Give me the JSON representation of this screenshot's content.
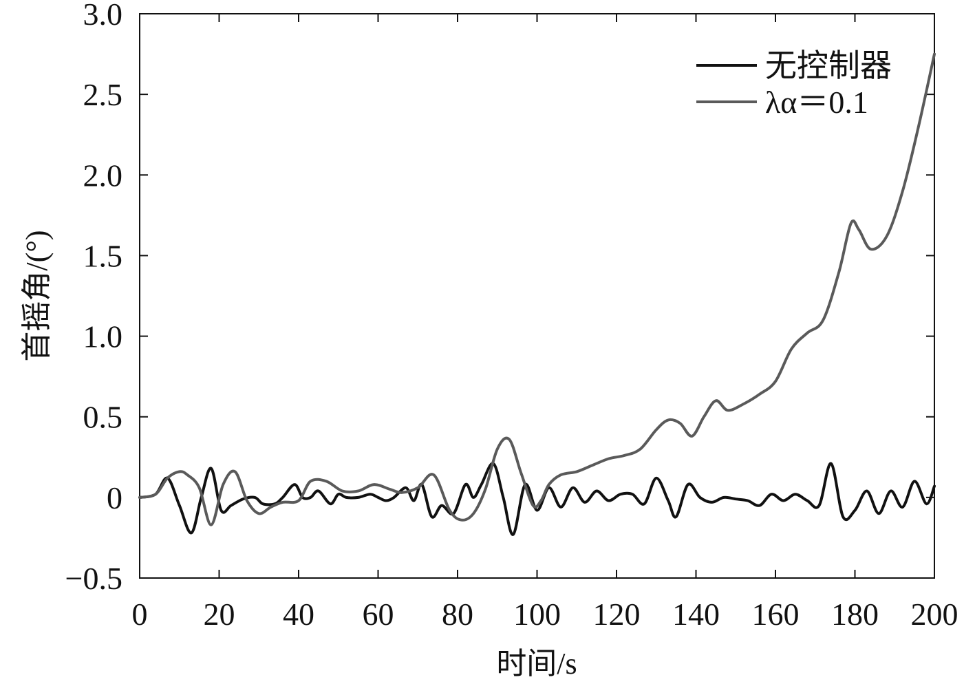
{
  "chart_data": {
    "type": "line",
    "title": "",
    "xlabel": "时间/s",
    "ylabel": "首摇角/(°)",
    "xlim": [
      0,
      200
    ],
    "ylim": [
      -0.5,
      3.0
    ],
    "xticks": [
      0,
      20,
      40,
      60,
      80,
      100,
      120,
      140,
      160,
      180,
      200
    ],
    "xtick_labels": [
      "0",
      "20",
      "40",
      "60",
      "80",
      "100",
      "120",
      "140",
      "160",
      "180",
      "200"
    ],
    "yticks": [
      -0.5,
      0,
      0.5,
      1.0,
      1.5,
      2.0,
      2.5,
      3.0
    ],
    "ytick_labels": [
      "−0.5",
      "0",
      "0.5",
      "1.0",
      "1.5",
      "2.0",
      "2.5",
      "3.0"
    ],
    "grid": false,
    "legend_position": "top-right",
    "series": [
      {
        "name": "无控制器",
        "color": "#111111",
        "x": [
          0,
          4,
          7,
          10,
          13,
          15.5,
          18,
          20.5,
          23,
          26,
          29,
          31,
          34,
          36,
          39,
          41,
          43,
          45,
          48,
          50,
          52,
          55,
          58,
          60,
          62,
          64,
          67,
          69,
          71,
          73.5,
          76,
          79,
          82,
          84,
          86,
          89,
          91.5,
          94,
          97,
          100,
          103,
          106,
          109,
          112,
          115,
          118,
          121,
          124,
          127,
          130,
          133,
          135,
          138,
          141,
          144,
          147,
          150,
          153,
          156,
          159,
          162,
          165,
          168,
          171,
          174,
          177,
          180,
          183,
          186,
          189,
          192,
          195,
          198,
          200
        ],
        "y": [
          0,
          0.02,
          0.12,
          -0.05,
          -0.22,
          0.0,
          0.18,
          -0.08,
          -0.05,
          -0.01,
          0.0,
          -0.04,
          -0.04,
          0.0,
          0.08,
          0.0,
          0.0,
          0.04,
          -0.04,
          0.02,
          0.0,
          0.0,
          0.02,
          0.0,
          -0.02,
          0.0,
          0.06,
          -0.02,
          0.08,
          -0.12,
          -0.05,
          -0.1,
          0.08,
          0.0,
          0.08,
          0.21,
          0.0,
          -0.23,
          0.08,
          -0.08,
          0.06,
          -0.06,
          0.06,
          -0.03,
          0.04,
          -0.02,
          0.02,
          0.02,
          -0.04,
          0.12,
          -0.02,
          -0.12,
          0.08,
          0.0,
          -0.03,
          0.0,
          -0.01,
          -0.02,
          -0.05,
          0.02,
          -0.02,
          0.02,
          -0.02,
          -0.05,
          0.21,
          -0.12,
          -0.08,
          0.04,
          -0.1,
          0.04,
          -0.06,
          0.1,
          -0.04,
          0.07
        ]
      },
      {
        "name": "λα＝0.1",
        "color": "#5a5a5a",
        "x": [
          0,
          4,
          7,
          10,
          12,
          15,
          18,
          21,
          24,
          27,
          30,
          33,
          36,
          40,
          43,
          47,
          51,
          55,
          59,
          63,
          66,
          70,
          74,
          78,
          81,
          84,
          87,
          90,
          93,
          96,
          99,
          101,
          103,
          106,
          110,
          114,
          118,
          122,
          126,
          130,
          133,
          136,
          139,
          142,
          145,
          148,
          152,
          156,
          160,
          164,
          168,
          172,
          176,
          179,
          181,
          184,
          188,
          192,
          196,
          200
        ],
        "y": [
          0,
          0.02,
          0.12,
          0.16,
          0.14,
          0.06,
          -0.17,
          0.08,
          0.16,
          -0.02,
          -0.1,
          -0.06,
          -0.03,
          -0.02,
          0.1,
          0.1,
          0.04,
          0.04,
          0.08,
          0.05,
          0.03,
          0.06,
          0.14,
          -0.08,
          -0.14,
          -0.1,
          0.05,
          0.3,
          0.36,
          0.15,
          -0.05,
          -0.02,
          0.08,
          0.14,
          0.16,
          0.2,
          0.24,
          0.26,
          0.3,
          0.42,
          0.48,
          0.46,
          0.38,
          0.5,
          0.6,
          0.54,
          0.58,
          0.64,
          0.72,
          0.92,
          1.02,
          1.1,
          1.4,
          1.7,
          1.66,
          1.54,
          1.62,
          1.9,
          2.3,
          2.75
        ]
      }
    ]
  }
}
